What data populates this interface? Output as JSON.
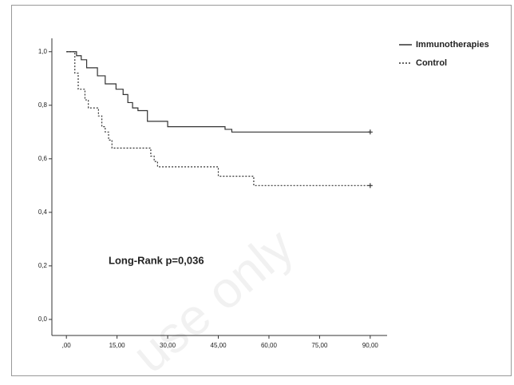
{
  "chart_data": {
    "type": "line",
    "step": true,
    "annotation": "Long-Rank p=0,036",
    "watermark": "use only",
    "xlim": [
      -4.3,
      95
    ],
    "ylim": [
      -0.06,
      1.05
    ],
    "xticks": [
      {
        "value": 0,
        "label": ",00"
      },
      {
        "value": 15,
        "label": "15,00"
      },
      {
        "value": 30,
        "label": "30,00"
      },
      {
        "value": 45,
        "label": "45,00"
      },
      {
        "value": 60,
        "label": "60,00"
      },
      {
        "value": 75,
        "label": "75,00"
      },
      {
        "value": 90,
        "label": "90,00"
      }
    ],
    "yticks": [
      {
        "value": 0,
        "label": "0,0"
      },
      {
        "value": 0.2,
        "label": "0,2"
      },
      {
        "value": 0.4,
        "label": "0,4"
      },
      {
        "value": 0.6,
        "label": "0,6"
      },
      {
        "value": 0.8,
        "label": "0,8"
      },
      {
        "value": 1,
        "label": "1,0"
      }
    ],
    "series": [
      {
        "name": "Immunotherapies",
        "color": "#333333",
        "dash": "solid",
        "x": [
          0,
          3,
          4.4,
          6,
          9.2,
          11.5,
          14.7,
          16.8,
          18.2,
          19.6,
          21.2,
          24,
          30,
          47,
          49,
          90
        ],
        "values": [
          1,
          0.985,
          0.97,
          0.94,
          0.91,
          0.88,
          0.86,
          0.84,
          0.81,
          0.79,
          0.78,
          0.74,
          0.72,
          0.71,
          0.7,
          0.7
        ]
      },
      {
        "name": "Control",
        "color": "#333333",
        "dash": "dotted",
        "x": [
          0,
          2.5,
          3.5,
          5.5,
          6.5,
          9.5,
          10.5,
          11.5,
          12.5,
          13.5,
          25,
          26,
          27,
          45,
          55.5,
          90
        ],
        "values": [
          1,
          0.92,
          0.86,
          0.82,
          0.79,
          0.76,
          0.72,
          0.7,
          0.67,
          0.64,
          0.61,
          0.59,
          0.57,
          0.535,
          0.5,
          0.5
        ]
      }
    ]
  }
}
